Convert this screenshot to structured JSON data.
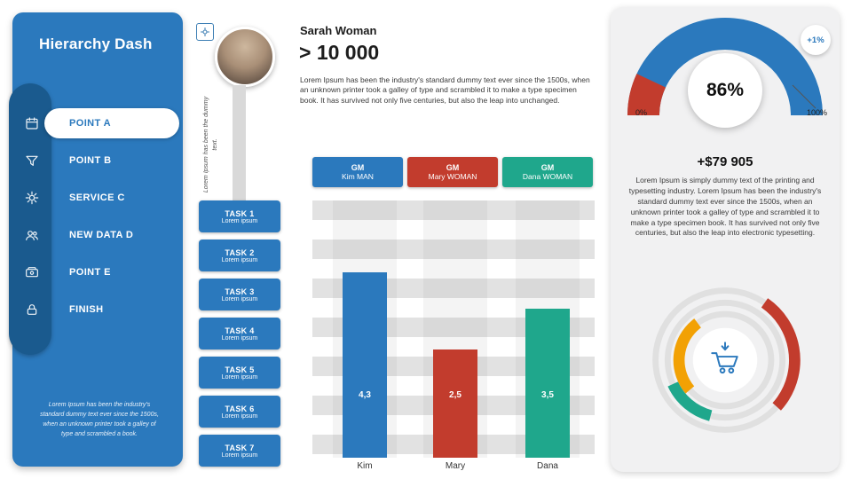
{
  "sidebar": {
    "title": "Hierarchy Dash",
    "items": [
      {
        "label": "POINT A",
        "icon": "calendar-icon",
        "active": true
      },
      {
        "label": "POINT B",
        "icon": "filter-icon",
        "active": false
      },
      {
        "label": "SERVICE C",
        "icon": "gear-icon",
        "active": false
      },
      {
        "label": "NEW DATA D",
        "icon": "users-icon",
        "active": false
      },
      {
        "label": "POINT E",
        "icon": "wallet-icon",
        "active": false
      },
      {
        "label": "FINISH",
        "icon": "lock-icon",
        "active": false
      }
    ],
    "footer_text": "Lorem Ipsum has been the industry's standard dummy text ever since the 1500s, when an unknown printer took a galley of type and scrambled a book."
  },
  "profile": {
    "name": "Sarah Woman",
    "value": "> 10 000",
    "description": "Lorem Ipsum has been the industry's standard dummy text ever since the 1500s, when an unknown printer took a galley of type and scrambled it to make a type specimen book. It has survived not only five centuries, but also the leap into unchanged.",
    "vertical_note": "Lorem Ipsum has been the dummy text."
  },
  "managers": [
    {
      "title": "GM",
      "name": "Kim MAN",
      "color": "#2B79BD"
    },
    {
      "title": "GM",
      "name": "Mary WOMAN",
      "color": "#C23C2D"
    },
    {
      "title": "GM",
      "name": "Dana WOMAN",
      "color": "#1FA78C"
    }
  ],
  "tasks": [
    {
      "label": "TASK 1",
      "sub": "Lorem ipsum"
    },
    {
      "label": "TASK 2",
      "sub": "Lorem ipsum"
    },
    {
      "label": "TASK 3",
      "sub": "Lorem ipsum"
    },
    {
      "label": "TASK 4",
      "sub": "Lorem ipsum"
    },
    {
      "label": "TASK 5",
      "sub": "Lorem ipsum"
    },
    {
      "label": "TASK 6",
      "sub": "Lorem ipsum"
    },
    {
      "label": "TASK 7",
      "sub": "Lorem ipsum"
    }
  ],
  "chart_data": {
    "type": "bar",
    "title": "",
    "xlabel": "",
    "ylabel": "",
    "categories": [
      "Kim",
      "Mary",
      "Dana"
    ],
    "values": [
      4.3,
      2.5,
      3.5
    ],
    "value_labels": [
      "4,3",
      "2,5",
      "3,5"
    ],
    "colors": [
      "#2B79BD",
      "#C23C2D",
      "#1FA78C"
    ],
    "ylim": [
      0,
      6
    ],
    "grid": "horizontal-stripes"
  },
  "gauge": {
    "type": "gauge",
    "percent": "86%",
    "value": 86,
    "badge": "+1%",
    "min_label": "0%",
    "max_label": "100%",
    "colors": {
      "main": "#2B79BD",
      "secondary": "#C23C2D"
    }
  },
  "summary": {
    "amount": "+$79 905",
    "description": "Lorem Ipsum is simply dummy text of the printing and typesetting industry. Lorem Ipsum has been the industry's standard dummy text ever since the 1500s, when an unknown printer took a galley of type and scrambled it to make a type specimen book. It has survived not only five centuries, but also the leap into electronic typesetting."
  },
  "donut": {
    "type": "ring-chart",
    "center_icon": "cart-icon",
    "colors": {
      "red": "#C23C2D",
      "teal": "#1FA78C",
      "orange": "#F2A104",
      "track": "#E0E0E0",
      "icon": "#2B79BD"
    }
  }
}
